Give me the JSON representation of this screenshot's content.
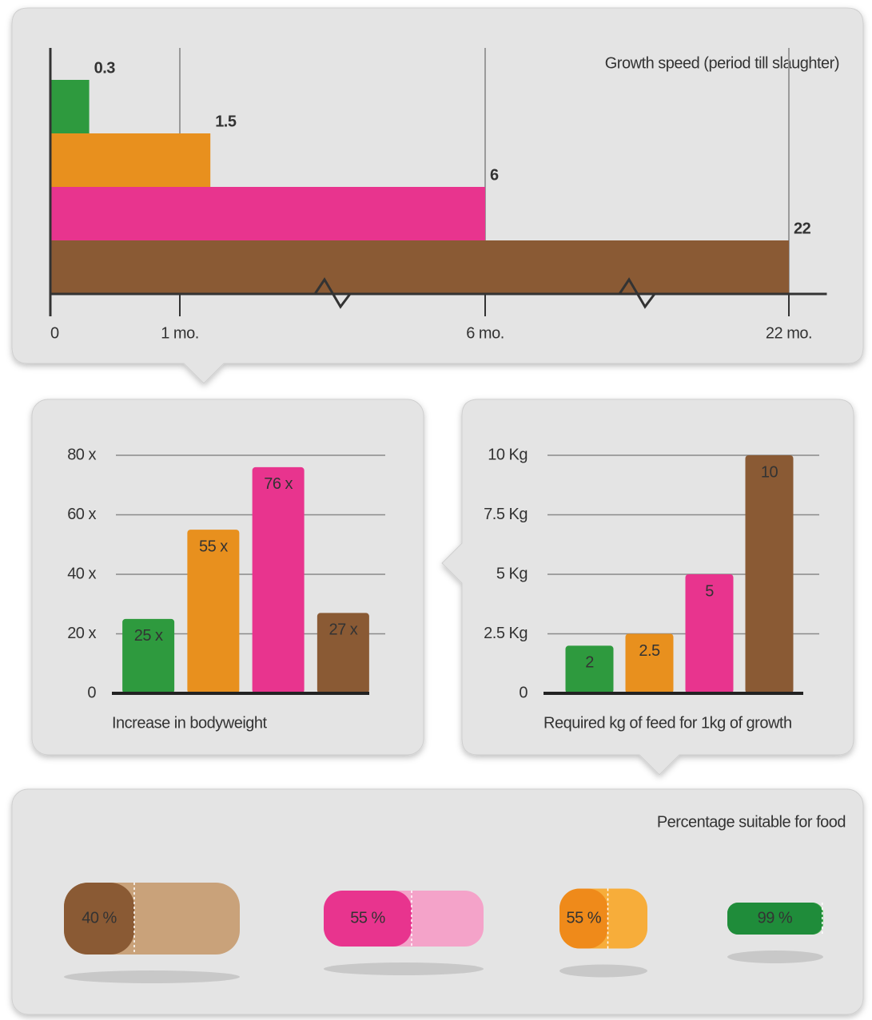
{
  "chart_data": [
    {
      "type": "bar",
      "orientation": "horizontal",
      "title": "Growth speed (period till slaughter)",
      "categories": [
        null,
        null,
        null,
        null
      ],
      "values": [
        0.3,
        1.5,
        6,
        22
      ],
      "colors": [
        "#2e9a3e",
        "#e8901e",
        "#e8348e",
        "#8a5a34"
      ],
      "xlim": [
        0,
        24
      ],
      "xticks": [
        0,
        {
          "value": 1,
          "label": "1 mo."
        },
        {
          "value": 6,
          "label": "6 mo."
        },
        {
          "value": 22,
          "label": "22 mo."
        }
      ],
      "broken_axis": true,
      "grid": true
    },
    {
      "type": "bar",
      "orientation": "vertical",
      "x_label": "Increase in bodyweight",
      "categories": [
        null,
        null,
        null,
        null
      ],
      "values": [
        25,
        55,
        76,
        27
      ],
      "value_labels": [
        "25 x",
        "55 x",
        "76 x",
        "27 x"
      ],
      "colors": [
        "#2e9a3e",
        "#e8901e",
        "#e8348e",
        "#8a5a34"
      ],
      "ylim": [
        0,
        80
      ],
      "yticks": [
        0,
        {
          "value": 20,
          "label": "20 x"
        },
        {
          "value": 40,
          "label": "40 x"
        },
        {
          "value": 60,
          "label": "60 x"
        },
        {
          "value": 80,
          "label": "80 x"
        }
      ],
      "grid": true
    },
    {
      "type": "bar",
      "orientation": "vertical",
      "x_label": "Required kg of feed for 1kg of growth",
      "categories": [
        null,
        null,
        null,
        null
      ],
      "values": [
        2,
        2.5,
        5,
        10
      ],
      "colors": [
        "#2e9a3e",
        "#e8901e",
        "#e8348e",
        "#8a5a34"
      ],
      "ylim": [
        0,
        10
      ],
      "yticks": [
        0,
        {
          "value": 2.5,
          "label": "2.5 Kg"
        },
        {
          "value": 5,
          "label": "5 Kg"
        },
        {
          "value": 7.5,
          "label": "7.5 Kg"
        },
        {
          "value": 10,
          "label": "10 Kg"
        }
      ],
      "grid": true
    },
    {
      "type": "split",
      "title": "Percentage suitable for food",
      "categories": [
        null,
        null,
        null,
        null
      ],
      "values": [
        40,
        55,
        55,
        99
      ],
      "value_labels": [
        "40 %",
        "55 %",
        "55 %",
        "99 %"
      ],
      "colors": [
        "#8a5a34",
        "#e8348e",
        "#ef8a1a",
        "#1f8c3a"
      ],
      "rest_colors": [
        "#c9a27a",
        "#f4a3c9",
        "#f7ad3a",
        "#49b04f"
      ]
    }
  ]
}
